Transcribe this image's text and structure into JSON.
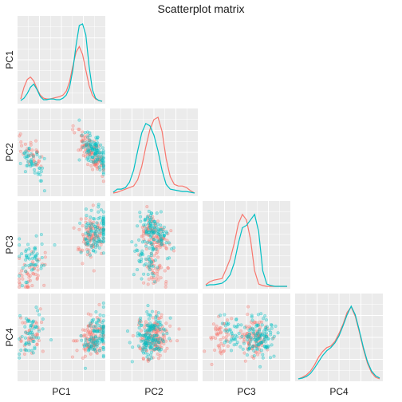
{
  "chart_data": {
    "type": "scatterplot-matrix",
    "title": "Scatterplot matrix",
    "variables": [
      "PC1",
      "PC2",
      "PC3",
      "PC4"
    ],
    "lower_panels": "scatter",
    "diagonal_panels": "density",
    "upper_panels": "blank",
    "grid": true,
    "legend": "none",
    "groups": [
      {
        "color": "#F8766D"
      },
      {
        "color": "#00BFC4"
      }
    ],
    "diagonal_density": {
      "PC1": {
        "x": [
          0,
          0.04,
          0.08,
          0.12,
          0.16,
          0.2,
          0.24,
          0.28,
          0.32,
          0.36,
          0.4,
          0.44,
          0.48,
          0.52,
          0.56,
          0.6,
          0.64,
          0.68,
          0.72,
          0.76,
          0.8,
          0.84,
          0.88,
          0.92,
          0.96,
          1
        ],
        "series": [
          [
            0.03,
            0.18,
            0.28,
            0.31,
            0.26,
            0.16,
            0.08,
            0.04,
            0.03,
            0.03,
            0.04,
            0.05,
            0.06,
            0.08,
            0.13,
            0.25,
            0.45,
            0.63,
            0.7,
            0.6,
            0.4,
            0.2,
            0.08,
            0.03,
            0.01,
            0
          ],
          [
            0.01,
            0.04,
            0.1,
            0.18,
            0.22,
            0.15,
            0.06,
            0.02,
            0.02,
            0.03,
            0.03,
            0.02,
            0.02,
            0.04,
            0.08,
            0.18,
            0.4,
            0.72,
            0.97,
            0.99,
            0.85,
            0.45,
            0.15,
            0.04,
            0.01,
            0
          ]
        ]
      },
      "PC2": {
        "x": [
          0,
          0.05,
          0.1,
          0.15,
          0.2,
          0.25,
          0.3,
          0.35,
          0.4,
          0.45,
          0.5,
          0.55,
          0.6,
          0.65,
          0.7,
          0.75,
          0.8,
          0.85,
          0.9,
          0.95,
          1
        ],
        "series": [
          [
            0.01,
            0.02,
            0.04,
            0.06,
            0.08,
            0.1,
            0.18,
            0.35,
            0.6,
            0.82,
            0.95,
            0.98,
            0.8,
            0.45,
            0.22,
            0.12,
            0.1,
            0.1,
            0.08,
            0.04,
            0.01
          ],
          [
            0.02,
            0.06,
            0.06,
            0.08,
            0.15,
            0.3,
            0.55,
            0.78,
            0.9,
            0.87,
            0.75,
            0.55,
            0.3,
            0.12,
            0.06,
            0.05,
            0.04,
            0.03,
            0.03,
            0.02,
            0.01
          ]
        ]
      },
      "PC3": {
        "x": [
          0,
          0.05,
          0.1,
          0.15,
          0.2,
          0.25,
          0.3,
          0.35,
          0.4,
          0.45,
          0.5,
          0.55,
          0.6,
          0.65,
          0.7,
          0.75,
          0.8,
          0.85,
          0.9,
          0.95,
          1
        ],
        "series": [
          [
            0.02,
            0.06,
            0.08,
            0.09,
            0.1,
            0.22,
            0.35,
            0.55,
            0.8,
            0.92,
            0.85,
            0.6,
            0.2,
            0.03,
            0.01,
            0,
            0,
            0,
            0,
            0,
            0
          ],
          [
            0.01,
            0.02,
            0.02,
            0.03,
            0.04,
            0.08,
            0.15,
            0.3,
            0.55,
            0.75,
            0.78,
            0.85,
            0.92,
            0.7,
            0.2,
            0.03,
            0.01,
            0,
            0,
            0,
            0
          ]
        ]
      },
      "PC4": {
        "x": [
          0,
          0.05,
          0.1,
          0.15,
          0.2,
          0.25,
          0.3,
          0.35,
          0.4,
          0.45,
          0.5,
          0.55,
          0.6,
          0.65,
          0.7,
          0.75,
          0.8,
          0.85,
          0.9,
          0.95,
          1
        ],
        "series": [
          [
            0,
            0.02,
            0.05,
            0.1,
            0.18,
            0.28,
            0.35,
            0.4,
            0.42,
            0.48,
            0.58,
            0.7,
            0.85,
            0.92,
            0.8,
            0.6,
            0.38,
            0.2,
            0.08,
            0.02,
            0
          ],
          [
            0,
            0.01,
            0.03,
            0.07,
            0.14,
            0.22,
            0.3,
            0.36,
            0.4,
            0.46,
            0.55,
            0.68,
            0.82,
            0.93,
            0.82,
            0.62,
            0.4,
            0.22,
            0.1,
            0.04,
            0.01
          ]
        ]
      }
    },
    "scatter_clusters": {
      "PC1": [
        [
          0.15,
          0.85
        ],
        [
          0.15,
          0.95
        ],
        [
          0.15,
          0.9
        ],
        [
          0.15,
          0.85
        ]
      ],
      "PC2": [
        [
          0.5,
          0.5
        ],
        [
          0.42,
          0.42
        ],
        [
          0.4,
          0.5
        ],
        [
          0.38,
          0.42
        ]
      ],
      "PC3": [
        [
          0.2,
          0.6
        ],
        [
          0.35,
          0.65
        ],
        [
          0.35,
          0.65
        ],
        [
          0.45,
          0.55
        ]
      ],
      "PC4": [
        [
          0.5,
          0.5
        ],
        [
          0.5,
          0.5
        ],
        [
          0.55,
          0.5
        ],
        [
          0.5,
          0.5
        ]
      ]
    },
    "points_per_group": 150
  }
}
